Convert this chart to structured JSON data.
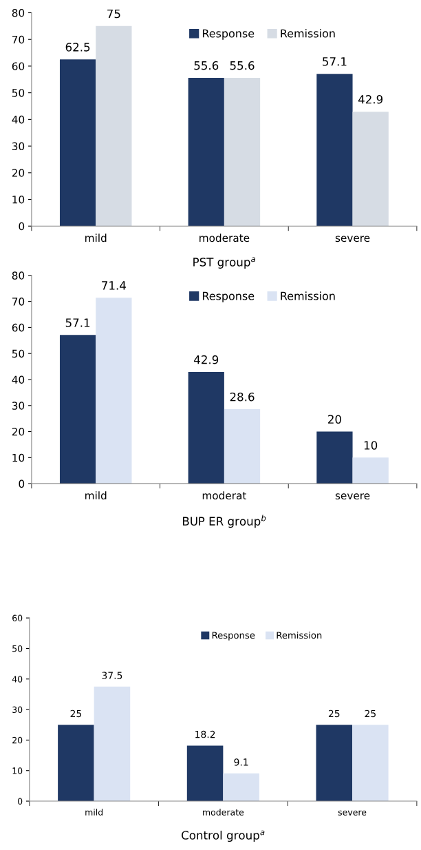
{
  "chart_data": [
    {
      "type": "bar",
      "xlabel": "PST group$^{a}$",
      "categories": [
        "mild",
        "moderate",
        "severe"
      ],
      "ylim": [
        0,
        80
      ],
      "yticks": [
        0,
        10,
        20,
        30,
        40,
        50,
        60,
        70,
        80
      ],
      "legend": "top",
      "data_labels": true,
      "grid": false,
      "series": [
        {
          "name": "Response",
          "color": "#1f3864",
          "values": [
            62.5,
            55.6,
            57.1
          ]
        },
        {
          "name": "Remission",
          "color": "#d6dce4",
          "values": [
            75,
            55.6,
            42.9
          ]
        }
      ]
    },
    {
      "type": "bar",
      "xlabel": "BUP ER group$^{b}$",
      "categories": [
        "mild",
        "moderat",
        "severe"
      ],
      "ylim": [
        0,
        80
      ],
      "yticks": [
        0,
        10,
        20,
        30,
        40,
        50,
        60,
        70,
        80
      ],
      "legend": "top",
      "data_labels": true,
      "grid": false,
      "series": [
        {
          "name": "Response",
          "color": "#1f3864",
          "values": [
            57.1,
            42.9,
            20
          ]
        },
        {
          "name": "Remission",
          "color": "#dae3f3",
          "values": [
            71.4,
            28.6,
            10
          ]
        }
      ]
    },
    {
      "type": "bar",
      "xlabel": "Control group$^{a}$",
      "categories": [
        "mild",
        "moderate",
        "severe"
      ],
      "ylim": [
        0,
        60
      ],
      "yticks": [
        0,
        10,
        20,
        30,
        40,
        50,
        60
      ],
      "legend": "top",
      "data_labels": true,
      "grid": false,
      "series": [
        {
          "name": "Response",
          "color": "#1f3864",
          "values": [
            25,
            18.2,
            25
          ]
        },
        {
          "name": "Remission",
          "color": "#dae3f3",
          "values": [
            37.5,
            9.1,
            25
          ]
        }
      ]
    }
  ]
}
